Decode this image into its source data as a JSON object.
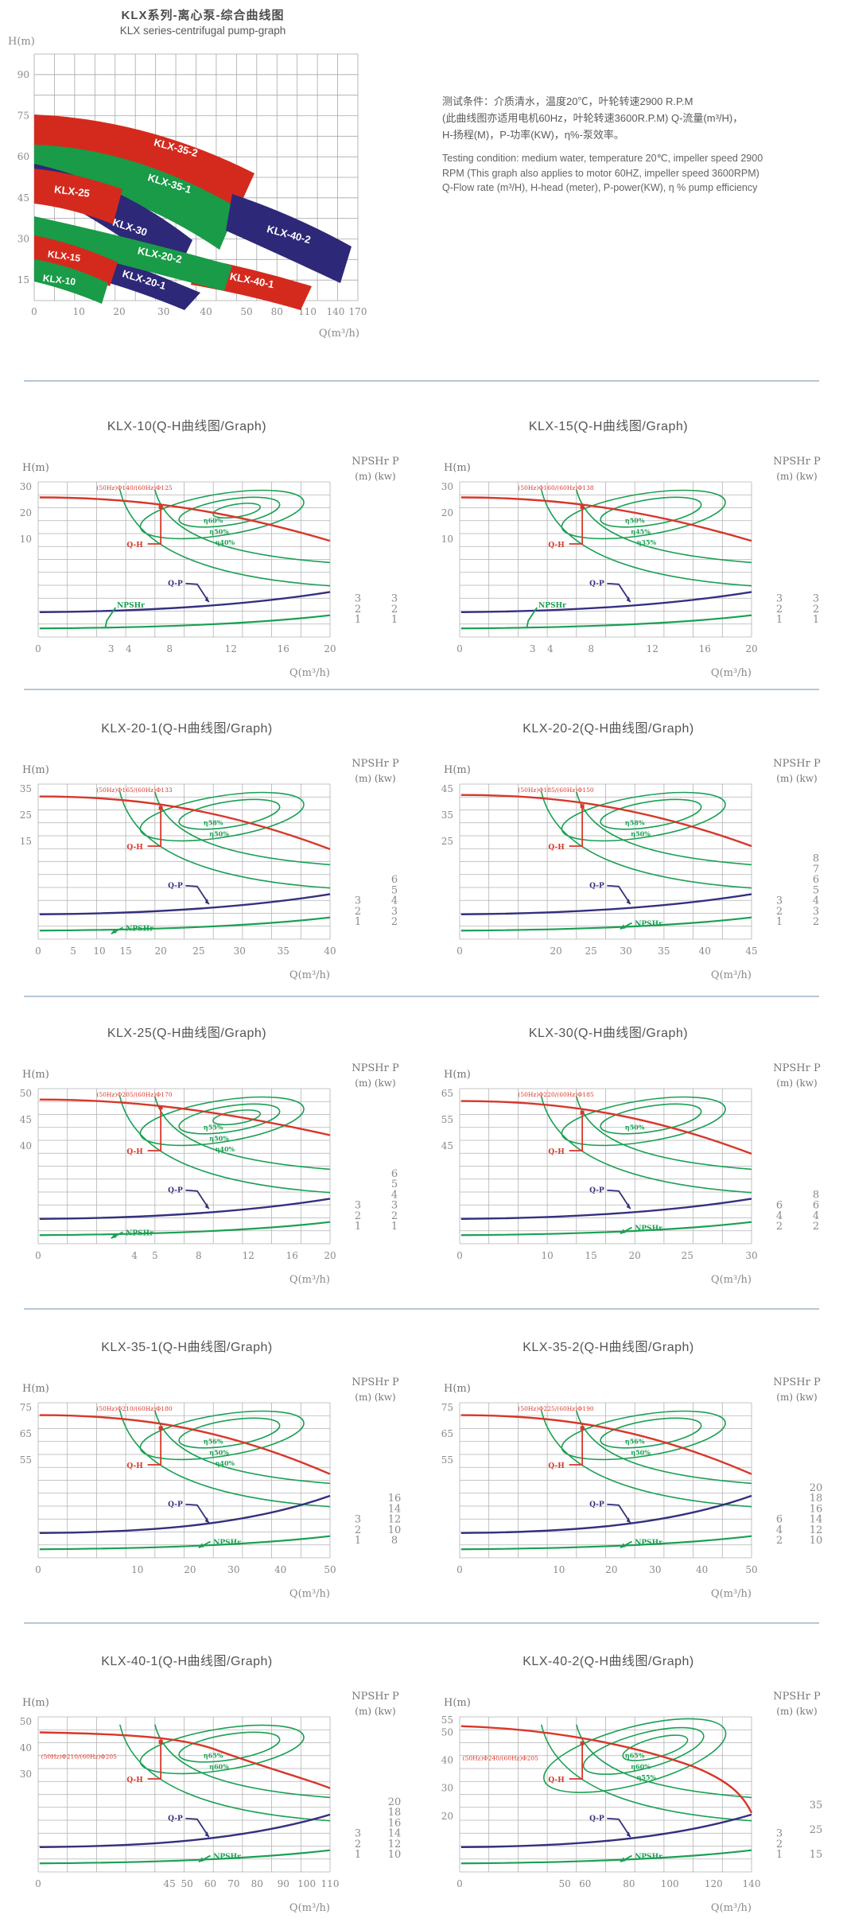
{
  "header": {
    "title_zh": "KLX系列-离心泵-综合曲线图",
    "title_en": "KLX series-centrifugal pump-graph"
  },
  "notes": {
    "zh": [
      "测试条件：介质清水，温度20℃，叶轮转速2900 R.P.M",
      "(此曲线图亦适用电机60Hz，叶轮转速3600R.P.M)  Q-流量(m³/H)，",
      "H-扬程(M)，P-功率(KW)，η%-泵效率。"
    ],
    "en": [
      "Testing condition: medium water, temperature 20℃, impeller speed 2900",
      "RPM (This graph also applies to motor 60HZ, impeller speed 3600RPM)",
      "Q-Flow rate (m³/H), H-head (meter), P-power(KW),  η % pump efficiency"
    ]
  },
  "colors": {
    "red": "#d42a1e",
    "green": "#199b47",
    "navy": "#2e2878",
    "qh": "#d8372a",
    "qp": "#34307e",
    "npshr": "#1aa053",
    "grid": "#a8a8a8",
    "tick": "#8a8a8a",
    "divider": "#b6c6d6"
  },
  "chart_data": {
    "main": {
      "type": "area",
      "title": "KLX系列-离心泵-综合曲线图 / KLX series-centrifugal pump-graph",
      "y_axis_label": "H(m)",
      "x_axis_label": "Q(m³/h)",
      "y_ticks": [
        90,
        75,
        60,
        45,
        30,
        15
      ],
      "x_ticks": [
        0,
        10,
        20,
        30,
        40,
        50,
        80,
        110,
        140,
        170
      ],
      "bands": [
        {
          "label": "KLX-35-2",
          "color": "red"
        },
        {
          "label": "KLX-35-1",
          "color": "green"
        },
        {
          "label": "KLX-25",
          "color": "red"
        },
        {
          "label": "KLX-30",
          "color": "navy"
        },
        {
          "label": "KLX-40-2",
          "color": "navy"
        },
        {
          "label": "KLX-20-2",
          "color": "green"
        },
        {
          "label": "KLX-20-1",
          "color": "navy"
        },
        {
          "label": "KLX-40-1",
          "color": "red"
        },
        {
          "label": "KLX-15",
          "color": "red"
        },
        {
          "label": "KLX-10",
          "color": "green"
        }
      ]
    },
    "pump_charts": [
      {
        "title": "KLX-10(Q-H曲线图/Graph)",
        "type": "line",
        "y_axis_label": "H(m)",
        "x_axis_label": "Q(m³/h)",
        "right_axis_header": "NPSHr P",
        "right_axis_units": "(m)  (kw)",
        "y_ticks": [
          30,
          20,
          10
        ],
        "x_ticks": [
          0,
          3,
          4,
          8,
          12,
          16,
          20
        ],
        "npshr_ticks": [
          3,
          2,
          1
        ],
        "p_ticks": [
          3,
          2,
          1
        ],
        "impeller_label": "(50Hz)Φ140/(60Hz)Φ125",
        "efficiency_labels": [
          "η60%",
          "η50%",
          "η40%"
        ],
        "series_labels": {
          "qh": "Q-H",
          "qp": "Q-P",
          "npshr": "NPSHr"
        }
      },
      {
        "title": "KLX-15(Q-H曲线图/Graph)",
        "type": "line",
        "y_axis_label": "H(m)",
        "x_axis_label": "Q(m³/h)",
        "right_axis_header": "NPSHr P",
        "right_axis_units": "(m)  (kw)",
        "y_ticks": [
          30,
          20,
          10
        ],
        "x_ticks": [
          0,
          3,
          4,
          8,
          12,
          16,
          20
        ],
        "npshr_ticks": [
          3,
          2,
          1
        ],
        "p_ticks": [
          3,
          2,
          1
        ],
        "impeller_label": "(50Hz)Φ160/(60Hz)Φ138",
        "efficiency_labels": [
          "η50%",
          "η45%",
          "η35%"
        ],
        "series_labels": {
          "qh": "Q-H",
          "qp": "Q-P",
          "npshr": "NPSHr"
        }
      },
      {
        "title": "KLX-20-1(Q-H曲线图/Graph)",
        "type": "line",
        "y_axis_label": "H(m)",
        "x_axis_label": "Q(m³/h)",
        "right_axis_header": "NPSHr P",
        "right_axis_units": "(m)  (kw)",
        "y_ticks": [
          35,
          25,
          15
        ],
        "x_ticks": [
          0,
          5,
          10,
          15,
          20,
          25,
          30,
          35,
          40
        ],
        "npshr_ticks": [
          3,
          2,
          1
        ],
        "p_ticks": [
          6,
          5,
          4,
          3,
          2
        ],
        "impeller_label": "(50Hz)Φ165/(60Hz)Φ133",
        "efficiency_labels": [
          "η58%",
          "η50%"
        ],
        "series_labels": {
          "qh": "Q-H",
          "qp": "Q-P",
          "npshr": "NPSHr"
        }
      },
      {
        "title": "KLX-20-2(Q-H曲线图/Graph)",
        "type": "line",
        "y_axis_label": "H(m)",
        "x_axis_label": "Q(m³/h)",
        "right_axis_header": "NPSHr P",
        "right_axis_units": "(m)  (kw)",
        "y_ticks": [
          45,
          35,
          25
        ],
        "x_ticks": [
          0,
          20,
          25,
          30,
          35,
          40,
          45
        ],
        "npshr_ticks": [
          3,
          2,
          1
        ],
        "p_ticks": [
          8,
          7,
          6,
          5,
          4,
          3,
          2
        ],
        "impeller_label": "(50Hz)Φ185/(60Hz)Φ150",
        "efficiency_labels": [
          "η58%",
          "η50%"
        ],
        "series_labels": {
          "qh": "Q-H",
          "qp": "Q-P",
          "npshr": "NPSHr"
        }
      },
      {
        "title": "KLX-25(Q-H曲线图/Graph)",
        "type": "line",
        "y_axis_label": "H(m)",
        "x_axis_label": "Q(m³/h)",
        "right_axis_header": "NPSHr P",
        "right_axis_units": "(m)  (kw)",
        "y_ticks": [
          50,
          45,
          40
        ],
        "x_ticks": [
          0,
          4,
          5,
          8,
          12,
          16,
          20
        ],
        "npshr_ticks": [
          3,
          2,
          1
        ],
        "p_ticks": [
          6,
          5,
          4,
          3,
          2,
          1
        ],
        "impeller_label": "(50Hz)Φ205/(60Hz)Φ170",
        "efficiency_labels": [
          "η55%",
          "η50%",
          "η40%"
        ],
        "series_labels": {
          "qh": "Q-H",
          "qp": "Q-P",
          "npshr": "NPSHr"
        }
      },
      {
        "title": "KLX-30(Q-H曲线图/Graph)",
        "type": "line",
        "y_axis_label": "H(m)",
        "x_axis_label": "Q(m³/h)",
        "right_axis_header": "NPSHr P",
        "right_axis_units": "(m)  (kw)",
        "y_ticks": [
          65,
          55,
          45
        ],
        "x_ticks": [
          0,
          10,
          15,
          20,
          25,
          30
        ],
        "npshr_ticks": [
          6,
          4,
          2
        ],
        "p_ticks": [
          8,
          6,
          4,
          2
        ],
        "impeller_label": "(50Hz)Φ220/(60Hz)Φ185",
        "efficiency_labels": [
          "η50%"
        ],
        "series_labels": {
          "qh": "Q-H",
          "qp": "Q-P",
          "npshr": "NPSHr"
        }
      },
      {
        "title": "KLX-35-1(Q-H曲线图/Graph)",
        "type": "line",
        "y_axis_label": "H(m)",
        "x_axis_label": "Q(m³/h)",
        "right_axis_header": "NPSHr P",
        "right_axis_units": "(m)  (kw)",
        "y_ticks": [
          75,
          65,
          55
        ],
        "x_ticks": [
          0,
          10,
          20,
          30,
          40,
          50
        ],
        "npshr_ticks": [
          3,
          2,
          1
        ],
        "p_ticks": [
          16,
          14,
          12,
          10,
          8
        ],
        "impeller_label": "(50Hz)Φ210/(60Hz)Φ180",
        "efficiency_labels": [
          "η56%",
          "η50%",
          "η40%"
        ],
        "series_labels": {
          "qh": "Q-H",
          "qp": "Q-P",
          "npshr": "NPSHr"
        }
      },
      {
        "title": "KLX-35-2(Q-H曲线图/Graph)",
        "type": "line",
        "y_axis_label": "H(m)",
        "x_axis_label": "Q(m³/h)",
        "right_axis_header": "NPSHr P",
        "right_axis_units": "(m)  (kw)",
        "y_ticks": [
          75,
          65,
          55
        ],
        "x_ticks": [
          0,
          10,
          20,
          30,
          40,
          50
        ],
        "npshr_ticks": [
          6,
          4,
          2
        ],
        "p_ticks": [
          20,
          18,
          16,
          14,
          12,
          10
        ],
        "impeller_label": "(50Hz)Φ225/(60Hz)Φ190",
        "efficiency_labels": [
          "η56%",
          "η50%"
        ],
        "series_labels": {
          "qh": "Q-H",
          "qp": "Q-P",
          "npshr": "NPSHr"
        }
      },
      {
        "title": "KLX-40-1(Q-H曲线图/Graph)",
        "type": "line",
        "y_axis_label": "H(m)",
        "x_axis_label": "Q(m³/h)",
        "right_axis_header": "NPSHr P",
        "right_axis_units": "(m)  (kw)",
        "y_ticks": [
          50,
          40,
          30
        ],
        "x_ticks": [
          0,
          45,
          50,
          60,
          70,
          80,
          90,
          100,
          110
        ],
        "npshr_ticks": [
          3,
          2,
          1
        ],
        "p_ticks": [
          20,
          18,
          16,
          14,
          12,
          10
        ],
        "impeller_label": "(50Hz)Φ210/(60Hz)Φ205",
        "efficiency_labels": [
          "η65%",
          "η60%"
        ],
        "series_labels": {
          "qh": "Q-H",
          "qp": "Q-P",
          "npshr": "NPSHr"
        }
      },
      {
        "title": "KLX-40-2(Q-H曲线图/Graph)",
        "type": "line",
        "y_axis_label": "H(m)",
        "x_axis_label": "Q(m³/h)",
        "right_axis_header": "NPSHr P",
        "right_axis_units": "(m)  (kw)",
        "y_ticks": [
          55,
          50,
          40,
          30,
          20
        ],
        "x_ticks": [
          0,
          50,
          60,
          80,
          100,
          120,
          140
        ],
        "npshr_ticks": [
          3,
          2,
          1
        ],
        "p_ticks": [
          35,
          25,
          15
        ],
        "impeller_label": "(50Hz)Φ240/(60Hz)Φ205",
        "efficiency_labels": [
          "η65%",
          "η60%",
          "η55%"
        ],
        "series_labels": {
          "qh": "Q-H",
          "qp": "Q-P",
          "npshr": "NPSHr"
        }
      }
    ]
  }
}
